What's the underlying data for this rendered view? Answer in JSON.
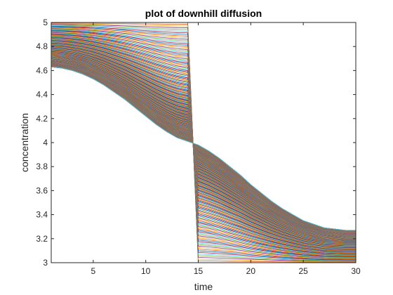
{
  "chart_data": {
    "type": "line",
    "title": "plot of downhill diffusion",
    "xlabel": "time",
    "ylabel": "concentration",
    "xlim": [
      1,
      30
    ],
    "ylim": [
      3,
      5
    ],
    "xticks": [
      5,
      10,
      15,
      20,
      25,
      30
    ],
    "yticks": [
      3,
      3.2,
      3.4,
      3.6,
      3.8,
      4,
      4.2,
      4.4,
      4.6,
      4.8,
      5
    ],
    "grid": false,
    "box": true,
    "series_count": 300,
    "x": [
      1,
      2,
      3,
      4,
      5,
      6,
      7,
      8,
      9,
      10,
      11,
      12,
      13,
      14,
      15,
      16,
      17,
      18,
      19,
      20,
      21,
      22,
      23,
      24,
      25,
      26,
      27,
      28,
      29,
      30
    ],
    "initial_profile": {
      "left_value": 5,
      "right_value": 3,
      "step_between": [
        14,
        15
      ]
    },
    "final_profile": {
      "y": [
        4.63,
        4.62,
        4.6,
        4.57,
        4.53,
        4.48,
        4.42,
        4.36,
        4.29,
        4.22,
        4.15,
        4.09,
        4.04,
        4.01,
        3.98,
        3.93,
        3.87,
        3.8,
        3.73,
        3.65,
        3.58,
        3.51,
        3.45,
        3.4,
        3.35,
        3.32,
        3.29,
        3.28,
        3.27,
        3.27
      ]
    },
    "color_order": [
      "#0072BD",
      "#D95319",
      "#EDB120",
      "#7E2F8E",
      "#77AC30",
      "#4DBEEE",
      "#A2142F"
    ]
  }
}
